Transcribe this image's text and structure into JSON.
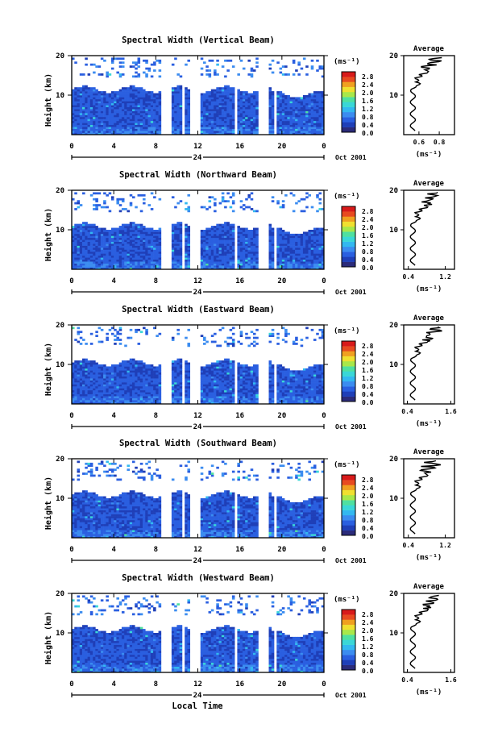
{
  "chart_data": [
    {
      "type": "heatmap",
      "title": "Spectral Width (Vertical Beam)",
      "ylabel": "Height (km)",
      "x_ticks": [
        "0",
        "4",
        "8",
        "12",
        "16",
        "20",
        "0"
      ],
      "y_ticks": [
        "10",
        "20"
      ],
      "day_label": "24",
      "date_label": "Oct 2001",
      "colorbar": {
        "unit": "(ms⁻¹)",
        "ticks": [
          "0.0",
          "0.4",
          "0.8",
          "1.2",
          "1.6",
          "2.0",
          "2.4",
          "2.8"
        ],
        "range": [
          0,
          3.0
        ]
      },
      "gaps_hours": [
        [
          8.6,
          9.6
        ],
        [
          10.5,
          10.7
        ],
        [
          11.3,
          12.3
        ],
        [
          15.5,
          15.7
        ],
        [
          17.7,
          18.7
        ],
        [
          19.2,
          19.5
        ]
      ],
      "average": {
        "title": "Average",
        "x_ticks": [
          "0.6",
          "0.8"
        ],
        "xlim": [
          0.45,
          0.95
        ],
        "xlabel": "(ms⁻¹)",
        "y_ticks": [
          "10",
          "20"
        ]
      }
    },
    {
      "type": "heatmap",
      "title": "Spectral Width (Northward Beam)",
      "ylabel": "Height (km)",
      "x_ticks": [
        "0",
        "4",
        "8",
        "12",
        "16",
        "20",
        "0"
      ],
      "y_ticks": [
        "10",
        "20"
      ],
      "day_label": "24",
      "date_label": "Oct 2001",
      "colorbar": {
        "unit": "(ms⁻¹)",
        "ticks": [
          "0.0",
          "0.4",
          "0.8",
          "1.2",
          "1.6",
          "2.0",
          "2.4",
          "2.8"
        ],
        "range": [
          0,
          3.0
        ]
      },
      "gaps_hours": [
        [
          8.6,
          9.6
        ],
        [
          10.5,
          10.7
        ],
        [
          11.3,
          12.3
        ],
        [
          15.5,
          15.7
        ],
        [
          17.7,
          18.7
        ],
        [
          19.2,
          19.5
        ]
      ],
      "average": {
        "title": "Average",
        "x_ticks": [
          "0.4",
          "1.2"
        ],
        "xlim": [
          0.3,
          1.4
        ],
        "xlabel": "(ms⁻¹)",
        "y_ticks": [
          "10",
          "20"
        ]
      }
    },
    {
      "type": "heatmap",
      "title": "Spectral Width (Eastward Beam)",
      "ylabel": "Height (km)",
      "x_ticks": [
        "0",
        "4",
        "8",
        "12",
        "16",
        "20",
        "0"
      ],
      "y_ticks": [
        "10",
        "20"
      ],
      "day_label": "24",
      "date_label": "Oct 2001",
      "colorbar": {
        "unit": "(ms⁻¹)",
        "ticks": [
          "0.0",
          "0.4",
          "0.8",
          "1.2",
          "1.6",
          "2.0",
          "2.4",
          "2.8"
        ],
        "range": [
          0,
          3.0
        ]
      },
      "gaps_hours": [
        [
          8.6,
          9.6
        ],
        [
          10.5,
          10.7
        ],
        [
          11.3,
          12.3
        ],
        [
          15.5,
          15.7
        ],
        [
          17.7,
          18.7
        ],
        [
          19.2,
          19.5
        ]
      ],
      "average": {
        "title": "Average",
        "x_ticks": [
          "0.4",
          "1.6"
        ],
        "xlim": [
          0.3,
          1.7
        ],
        "xlabel": "(ms⁻¹)",
        "y_ticks": [
          "10",
          "20"
        ]
      }
    },
    {
      "type": "heatmap",
      "title": "Spectral Width (Southward Beam)",
      "ylabel": "Height (km)",
      "x_ticks": [
        "0",
        "4",
        "8",
        "12",
        "16",
        "20",
        "0"
      ],
      "y_ticks": [
        "10",
        "20"
      ],
      "day_label": "24",
      "date_label": "Oct 2001",
      "colorbar": {
        "unit": "(ms⁻¹)",
        "ticks": [
          "0.0",
          "0.4",
          "0.8",
          "1.2",
          "1.6",
          "2.0",
          "2.4",
          "2.8"
        ],
        "range": [
          0,
          3.0
        ]
      },
      "gaps_hours": [
        [
          8.6,
          9.6
        ],
        [
          10.5,
          10.7
        ],
        [
          11.3,
          12.3
        ],
        [
          15.5,
          15.7
        ],
        [
          17.7,
          18.7
        ],
        [
          19.2,
          19.5
        ]
      ],
      "average": {
        "title": "Average",
        "x_ticks": [
          "0.4",
          "1.2"
        ],
        "xlim": [
          0.3,
          1.4
        ],
        "xlabel": "(ms⁻¹)",
        "y_ticks": [
          "10",
          "20"
        ]
      }
    },
    {
      "type": "heatmap",
      "title": "Spectral Width (Westward Beam)",
      "ylabel": "Height (km)",
      "x_ticks": [
        "0",
        "4",
        "8",
        "12",
        "16",
        "20",
        "0"
      ],
      "y_ticks": [
        "10",
        "20"
      ],
      "day_label": "24",
      "date_label": "Oct 2001",
      "colorbar": {
        "unit": "(ms⁻¹)",
        "ticks": [
          "0.0",
          "0.4",
          "0.8",
          "1.2",
          "1.6",
          "2.0",
          "2.4",
          "2.8"
        ],
        "range": [
          0,
          3.0
        ]
      },
      "gaps_hours": [
        [
          8.6,
          9.6
        ],
        [
          10.5,
          10.7
        ],
        [
          11.3,
          12.3
        ],
        [
          15.5,
          15.7
        ],
        [
          17.7,
          18.7
        ],
        [
          19.2,
          19.5
        ]
      ],
      "average": {
        "title": "Average",
        "x_ticks": [
          "0.4",
          "1.6"
        ],
        "xlim": [
          0.3,
          1.7
        ],
        "xlabel": "(ms⁻¹)",
        "y_ticks": [
          "10",
          "20"
        ]
      }
    }
  ],
  "xlabel": "Local Time",
  "colormap": [
    "#2b2b7a",
    "#1f3fb8",
    "#2a5fe0",
    "#3b8cf0",
    "#33b8f0",
    "#3ad7d7",
    "#4fe0a0",
    "#a8e84a",
    "#f0e030",
    "#f0a020",
    "#e84a20",
    "#d81a1a"
  ]
}
